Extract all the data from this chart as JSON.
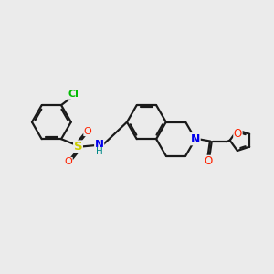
{
  "background_color": "#ebebeb",
  "bond_color": "#1a1a1a",
  "atom_colors": {
    "Cl": "#00bb00",
    "S": "#cccc00",
    "O_red": "#ff2200",
    "O_sulfonyl": "#ff2200",
    "N": "#0000ee",
    "H": "#008888"
  },
  "lw": 1.6,
  "figsize": [
    3.0,
    3.0
  ],
  "dpi": 100,
  "xlim": [
    0,
    10
  ],
  "ylim": [
    0,
    10
  ]
}
